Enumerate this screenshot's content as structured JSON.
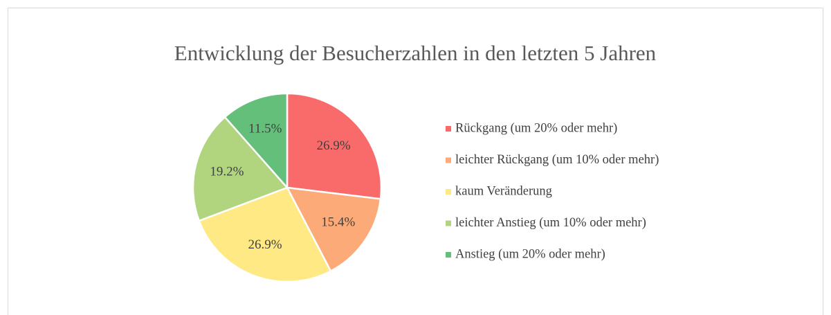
{
  "chart_data": {
    "type": "pie",
    "title": "Entwicklung der Besucherzahlen in den letzten 5 Jahren",
    "categories": [
      "Rückgang (um 20% oder mehr)",
      "leichter Rückgang (um 10% oder mehr)",
      "kaum Veränderung",
      "leichter Anstieg (um 10% oder mehr)",
      "Anstieg (um 20% oder mehr)"
    ],
    "values": [
      26.9,
      15.4,
      26.9,
      19.2,
      11.5
    ],
    "value_labels": [
      "26.9%",
      "15.4%",
      "26.9%",
      "19.2%",
      "11.5%"
    ],
    "colors": [
      "#f96a6a",
      "#fbaa78",
      "#ffe985",
      "#b1d47f",
      "#64bf7b"
    ],
    "legend": "right"
  }
}
